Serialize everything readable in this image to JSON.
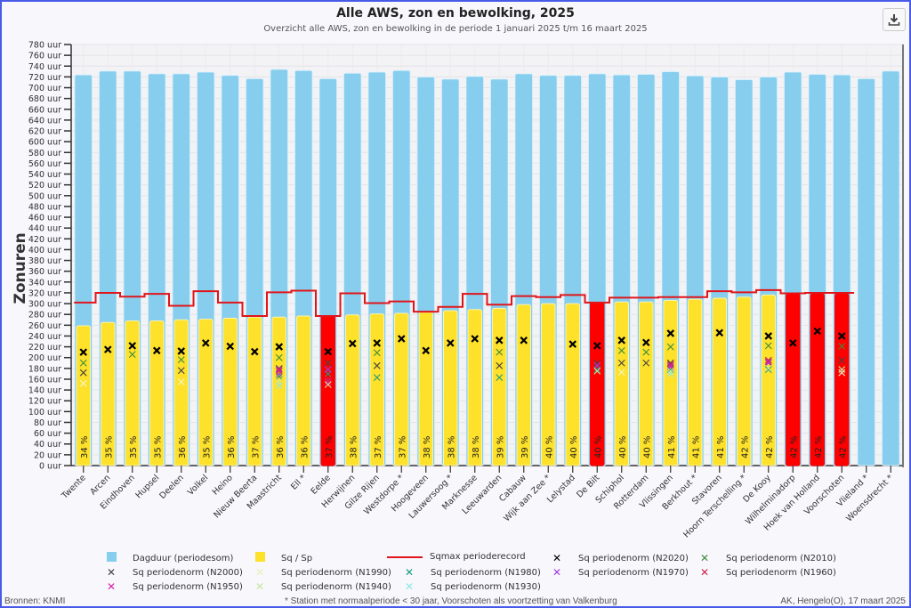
{
  "header": {
    "title": "Alle AWS, zon en bewolking, 2025",
    "subtitle": "Overzicht alle AWS, zon en bewolking in de periode 1 januari 2025 t/m 16 maart 2025",
    "download_icon": "download-icon"
  },
  "footer": {
    "source": "Bronnen: KNMI",
    "note": "* Station met normaalperiode < 30 jaar, Voorschoten als voortzetting van Valkenburg",
    "author": "AK, Hengelo(O), 17 maart 2025"
  },
  "legend": [
    {
      "label": "Dagduur (periodesom)",
      "symbol": "square",
      "color": "#87ceee"
    },
    {
      "label": "Sq / Sp",
      "symbol": "square",
      "color": "#fde12b"
    },
    {
      "label": "Sqmax perioderecord",
      "symbol": "line",
      "color": "#e0151a"
    },
    {
      "label": "Sq periodenorm (N2020)",
      "symbol": "x-bold",
      "color": "#000000"
    },
    {
      "label": "Sq periodenorm (N2010)",
      "symbol": "x",
      "color": "#3d8a3d"
    },
    {
      "label": "Sq periodenorm (N2000)",
      "symbol": "x",
      "color": "#444444"
    },
    {
      "label": "Sq periodenorm (N1990)",
      "symbol": "x",
      "color": "#eef5c0"
    },
    {
      "label": "Sq periodenorm (N1980)",
      "symbol": "x",
      "color": "#1a9a7a"
    },
    {
      "label": "Sq periodenorm (N1970)",
      "symbol": "x",
      "color": "#a23bd6"
    },
    {
      "label": "Sq periodenorm (N1960)",
      "symbol": "x",
      "color": "#c8234a"
    },
    {
      "label": "Sq periodenorm (N1950)",
      "symbol": "x",
      "color": "#d61fae"
    },
    {
      "label": "Sq periodenorm (N1940)",
      "symbol": "x",
      "color": "#c8e6a0"
    },
    {
      "label": "Sq periodenorm (N1930)",
      "symbol": "x",
      "color": "#8ee8e8"
    }
  ],
  "chart_data": {
    "type": "bar",
    "title": "Alle AWS, zon en bewolking, 2025",
    "subtitle": "Overzicht alle AWS, zon en bewolking in de periode 1 januari 2025 t/m 16 maart 2025",
    "ylabel": "Zonuren",
    "xlabel": "",
    "ylim": [
      0,
      780
    ],
    "ytick_step": 20,
    "ytick_suffix": " uur",
    "grid": true,
    "legend_position": "bottom",
    "categories": [
      "Twente",
      "Arcen",
      "Eindhoven",
      "Hupsel",
      "Deelen",
      "Volkel",
      "Heino",
      "Nieuw Beerta",
      "Maastricht",
      "Ell *",
      "Eelde",
      "Herwijnen",
      "Gilze Rijen",
      "Westdorpe *",
      "Hoogeveen",
      "Lauwersoog *",
      "Marknesse",
      "Leeuwarden",
      "Cabauw",
      "Wijk aan Zee *",
      "Lelystad",
      "De Bilt",
      "Schiphol",
      "Rotterdam",
      "Vlissingen",
      "Berkhout *",
      "Stavoren",
      "Hoorn Terschelling *",
      "De Kooy",
      "Wilhelminadorp",
      "Hoek van Holland",
      "Voorschoten",
      "Vlieland *",
      "Woensdrecht *"
    ],
    "series": [
      {
        "name": "Dagduur (periodesom)",
        "values": [
          724,
          731,
          731,
          726,
          726,
          729,
          723,
          717,
          734,
          732,
          717,
          727,
          729,
          732,
          720,
          716,
          721,
          716,
          726,
          723,
          723,
          726,
          724,
          725,
          730,
          722,
          720,
          715,
          720,
          729,
          725,
          724,
          717,
          731
        ]
      },
      {
        "name": "Sq / Sp",
        "values": [
          259,
          265,
          268,
          268,
          270,
          271,
          273,
          275,
          275,
          277,
          277,
          279,
          281,
          282,
          284,
          287,
          289,
          291,
          298,
          300,
          300,
          302,
          303,
          303,
          306,
          308,
          310,
          312,
          316,
          318,
          318,
          318,
          null,
          null
        ]
      },
      {
        "name": "Sqmax perioderecord",
        "values": [
          302,
          320,
          313,
          318,
          296,
          323,
          302,
          277,
          321,
          324,
          277,
          319,
          301,
          304,
          285,
          294,
          318,
          298,
          314,
          312,
          316,
          302,
          311,
          311,
          312,
          312,
          323,
          321,
          325,
          319,
          320,
          320,
          null,
          null
        ]
      },
      {
        "name": "Sq periodenorm (N2020)",
        "values": [
          210,
          215,
          222,
          213,
          212,
          227,
          221,
          211,
          220,
          null,
          211,
          226,
          227,
          235,
          213,
          227,
          235,
          232,
          232,
          null,
          225,
          222,
          232,
          228,
          245,
          null,
          246,
          null,
          240,
          227,
          249,
          240,
          null,
          null
        ]
      },
      {
        "name": "Sq periodenorm (N2010)",
        "values": [
          190,
          null,
          206,
          null,
          196,
          null,
          null,
          null,
          200,
          null,
          null,
          null,
          209,
          null,
          null,
          null,
          null,
          210,
          null,
          null,
          null,
          null,
          213,
          210,
          220,
          null,
          null,
          null,
          222,
          null,
          null,
          221,
          null,
          null
        ]
      },
      {
        "name": "Sq periodenorm (N2000)",
        "values": [
          172,
          null,
          null,
          null,
          176,
          null,
          null,
          null,
          180,
          null,
          190,
          null,
          185,
          null,
          null,
          null,
          null,
          185,
          null,
          null,
          null,
          190,
          190,
          190,
          190,
          null,
          null,
          null,
          195,
          null,
          null,
          195,
          null,
          null
        ]
      },
      {
        "name": "Sq periodenorm (N1990)",
        "values": [
          152,
          null,
          null,
          null,
          155,
          null,
          null,
          null,
          null,
          null,
          null,
          null,
          null,
          null,
          null,
          null,
          null,
          null,
          null,
          null,
          null,
          null,
          173,
          null,
          null,
          null,
          null,
          null,
          null,
          null,
          null,
          172,
          null,
          null
        ]
      },
      {
        "name": "Sq periodenorm (N1980)",
        "values": [
          null,
          null,
          null,
          null,
          null,
          null,
          null,
          null,
          165,
          null,
          170,
          null,
          163,
          null,
          null,
          null,
          null,
          163,
          null,
          null,
          null,
          178,
          null,
          null,
          178,
          null,
          null,
          null,
          178,
          null,
          null,
          null,
          null,
          null
        ]
      },
      {
        "name": "Sq periodenorm (N1970)",
        "values": [
          null,
          null,
          null,
          null,
          null,
          null,
          null,
          null,
          170,
          null,
          178,
          null,
          null,
          null,
          null,
          null,
          null,
          null,
          null,
          null,
          null,
          185,
          null,
          null,
          185,
          null,
          null,
          null,
          190,
          null,
          null,
          null,
          null,
          null
        ]
      },
      {
        "name": "Sq periodenorm (N1960)",
        "values": [
          null,
          null,
          null,
          null,
          null,
          null,
          null,
          null,
          175,
          null,
          160,
          null,
          null,
          null,
          null,
          null,
          null,
          null,
          null,
          null,
          null,
          null,
          null,
          null,
          188,
          null,
          null,
          null,
          195,
          null,
          null,
          null,
          null,
          null
        ]
      },
      {
        "name": "Sq periodenorm (N1950)",
        "values": [
          null,
          null,
          null,
          null,
          null,
          null,
          null,
          null,
          178,
          null,
          155,
          null,
          null,
          null,
          null,
          null,
          null,
          null,
          null,
          null,
          null,
          null,
          null,
          null,
          183,
          null,
          null,
          null,
          192,
          null,
          null,
          null,
          null,
          null
        ]
      },
      {
        "name": "Sq periodenorm (N1940)",
        "values": [
          null,
          null,
          null,
          null,
          null,
          null,
          null,
          null,
          155,
          null,
          150,
          null,
          null,
          null,
          null,
          null,
          null,
          null,
          null,
          null,
          null,
          175,
          null,
          null,
          175,
          null,
          null,
          null,
          180,
          null,
          null,
          178,
          null,
          null
        ]
      },
      {
        "name": "Sq periodenorm (N1930)",
        "values": [
          null,
          null,
          null,
          null,
          null,
          null,
          null,
          null,
          148,
          null,
          null,
          null,
          null,
          null,
          null,
          null,
          null,
          null,
          null,
          null,
          null,
          null,
          null,
          null,
          170,
          null,
          null,
          null,
          null,
          null,
          null,
          null,
          null,
          null
        ]
      }
    ],
    "percent_labels": [
      "34 %",
      "35 %",
      "35 %",
      "35 %",
      "36 %",
      "35 %",
      "36 %",
      "37 %",
      "36 %",
      "36 %",
      "37 %",
      "38 %",
      "37 %",
      "37 %",
      "38 %",
      "38 %",
      "38 %",
      "39 %",
      "39 %",
      "40 %",
      "40 %",
      "40 %",
      "40 %",
      "40 %",
      "41 %",
      "41 %",
      "41 %",
      "42 %",
      "42 %",
      "42 %",
      "42 %",
      "42 %",
      "",
      ""
    ],
    "record_flags": [
      false,
      false,
      false,
      false,
      false,
      false,
      false,
      false,
      false,
      false,
      true,
      false,
      false,
      false,
      false,
      false,
      false,
      false,
      false,
      false,
      false,
      true,
      false,
      false,
      false,
      false,
      false,
      false,
      false,
      true,
      true,
      true,
      false,
      false
    ],
    "colors": {
      "dagduur": "#87ceee",
      "sq": "#fde12b",
      "record_bar": "#ff0000",
      "record_line": "#e0151a"
    }
  }
}
